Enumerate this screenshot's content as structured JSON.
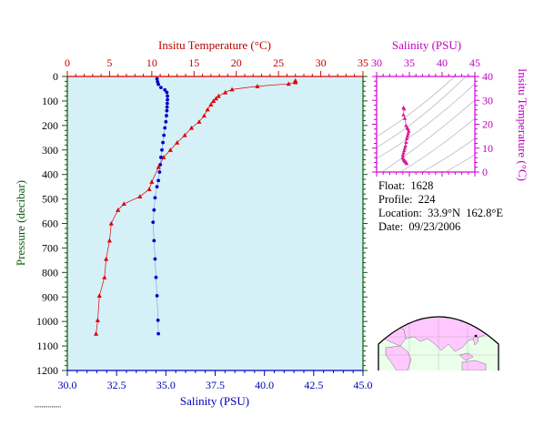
{
  "colors": {
    "temperature": "#e00000",
    "salinity": "#0000c8",
    "inset_temperature": "#e0149a",
    "plot_bg": "#d6f0f8",
    "depth_axis": "#0a5a0a",
    "land": "#ffc8ff",
    "ocean_map": "#eaffea"
  },
  "info": {
    "float_line": "Float:  1628",
    "profile_line": "Profile:  224",
    "location_line": "Location:  33.9°N  162.8°E",
    "date_line": "Date:  09/23/2006"
  },
  "tiny_text": "TTTTTTTTTTTTTTTT",
  "chart_data": [
    {
      "type": "line",
      "yaxis": {
        "label": "Pressure (decibar)",
        "range": [
          1200,
          0
        ],
        "ticks": [
          0,
          100,
          200,
          300,
          400,
          500,
          600,
          700,
          800,
          900,
          1000,
          1100,
          1200
        ]
      },
      "top_axis": {
        "label": "Insitu Temperature (°C)",
        "range": [
          0,
          35
        ],
        "ticks": [
          0,
          5,
          10,
          15,
          20,
          25,
          30,
          35
        ]
      },
      "bottom_axis": {
        "label": "Salinity (PSU)",
        "range": [
          30.0,
          45.0
        ],
        "ticks": [
          "30.0",
          "32.5",
          "35.0",
          "37.5",
          "40.0",
          "42.5",
          "45.0"
        ]
      },
      "series": [
        {
          "axis": "top",
          "marker": "triangle",
          "points": [
            [
              27.0,
              17
            ],
            [
              27.0,
              21
            ],
            [
              27.0,
              24
            ],
            [
              26.2,
              30
            ],
            [
              22.5,
              40
            ],
            [
              19.5,
              53
            ],
            [
              18.7,
              65
            ],
            [
              17.9,
              80
            ],
            [
              17.6,
              90
            ],
            [
              17.3,
              100
            ],
            [
              17.0,
              115
            ],
            [
              16.6,
              135
            ],
            [
              16.2,
              160
            ],
            [
              15.6,
              185
            ],
            [
              14.7,
              210
            ],
            [
              13.9,
              240
            ],
            [
              13.0,
              270
            ],
            [
              12.2,
              300
            ],
            [
              11.4,
              330
            ],
            [
              10.8,
              370
            ],
            [
              10.0,
              430
            ],
            [
              9.7,
              460
            ],
            [
              8.6,
              490
            ],
            [
              6.7,
              520
            ],
            [
              6.0,
              545
            ],
            [
              5.2,
              600
            ],
            [
              5.0,
              670
            ],
            [
              4.6,
              745
            ],
            [
              4.4,
              820
            ],
            [
              3.8,
              895
            ],
            [
              3.6,
              995
            ],
            [
              3.4,
              1050
            ]
          ]
        },
        {
          "axis": "bottom",
          "marker": "circle",
          "points": [
            [
              34.55,
              10
            ],
            [
              34.58,
              22
            ],
            [
              34.62,
              32
            ],
            [
              34.75,
              45
            ],
            [
              34.95,
              55
            ],
            [
              35.05,
              65
            ],
            [
              35.08,
              80
            ],
            [
              35.08,
              95
            ],
            [
              35.07,
              110
            ],
            [
              35.06,
              125
            ],
            [
              35.05,
              140
            ],
            [
              35.03,
              160
            ],
            [
              35.0,
              185
            ],
            [
              34.95,
              210
            ],
            [
              34.9,
              240
            ],
            [
              34.85,
              270
            ],
            [
              34.8,
              300
            ],
            [
              34.75,
              330
            ],
            [
              34.72,
              360
            ],
            [
              34.68,
              390
            ],
            [
              34.62,
              425
            ],
            [
              34.55,
              450
            ],
            [
              34.45,
              495
            ],
            [
              34.4,
              545
            ],
            [
              34.35,
              595
            ],
            [
              34.4,
              670
            ],
            [
              34.45,
              745
            ],
            [
              34.5,
              820
            ],
            [
              34.55,
              895
            ],
            [
              34.6,
              995
            ],
            [
              34.62,
              1050
            ]
          ]
        }
      ]
    },
    {
      "type": "scatter",
      "xaxis": {
        "label": "Salinity (PSU)",
        "range": [
          30,
          45
        ],
        "ticks": [
          "30",
          "35",
          "40",
          "45"
        ]
      },
      "yaxis": {
        "label": "Insitu Temperature (°C)",
        "range": [
          0,
          40
        ],
        "ticks": [
          "0",
          "10",
          "20",
          "30",
          "40"
        ]
      },
      "series": [
        {
          "marker": "triangle",
          "points": [
            [
              34.1,
              27
            ],
            [
              34.2,
              26.5
            ],
            [
              34.1,
              24
            ],
            [
              34.3,
              22.5
            ],
            [
              34.5,
              19.5
            ],
            [
              34.7,
              18.5
            ],
            [
              34.8,
              18
            ],
            [
              34.9,
              17
            ],
            [
              34.8,
              16
            ],
            [
              34.7,
              15
            ],
            [
              34.6,
              14
            ],
            [
              34.5,
              12.5
            ],
            [
              34.4,
              11
            ],
            [
              34.3,
              10
            ],
            [
              34.2,
              9
            ],
            [
              34.1,
              8
            ],
            [
              34.0,
              7
            ],
            [
              34.0,
              6
            ],
            [
              34.1,
              5.5
            ],
            [
              34.2,
              5
            ],
            [
              34.3,
              4.6
            ],
            [
              34.4,
              4.4
            ],
            [
              34.5,
              4
            ],
            [
              34.6,
              3.6
            ]
          ]
        }
      ]
    }
  ]
}
